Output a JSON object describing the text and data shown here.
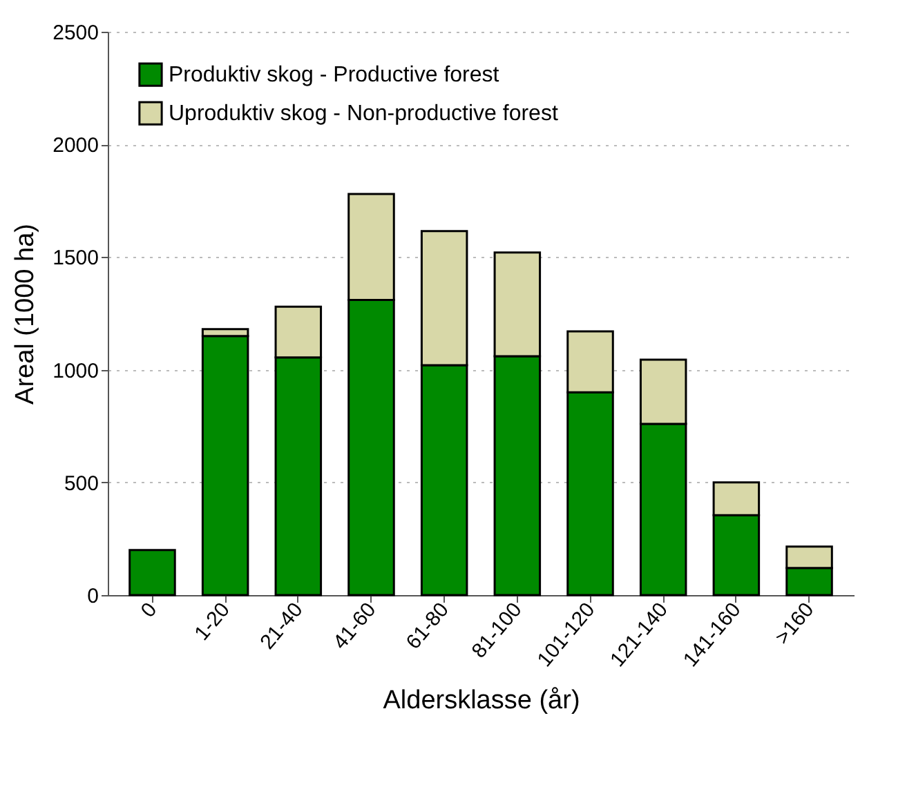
{
  "chart_data": {
    "type": "bar",
    "stacked": true,
    "xlabel": "Aldersklasse (år)",
    "ylabel": "Areal (1000 ha)",
    "categories": [
      "0",
      "1-20",
      "21-40",
      "41-60",
      "61-80",
      "81-100",
      "101-120",
      "121-140",
      "141-160",
      ">160"
    ],
    "series": [
      {
        "name": "Produktiv skog - Productive forest",
        "color": "#008a00",
        "values": [
          200,
          1150,
          1055,
          1310,
          1020,
          1060,
          900,
          760,
          355,
          120
        ]
      },
      {
        "name": "Uproduktiv skog - Non-productive forest",
        "color": "#d8d8a8",
        "values": [
          null,
          30,
          225,
          470,
          595,
          460,
          270,
          285,
          145,
          95
        ]
      }
    ],
    "ylim": [
      0,
      2500
    ],
    "yticks": [
      0,
      500,
      1000,
      1500,
      2000,
      2500
    ],
    "grid": "y",
    "legend": "top"
  }
}
